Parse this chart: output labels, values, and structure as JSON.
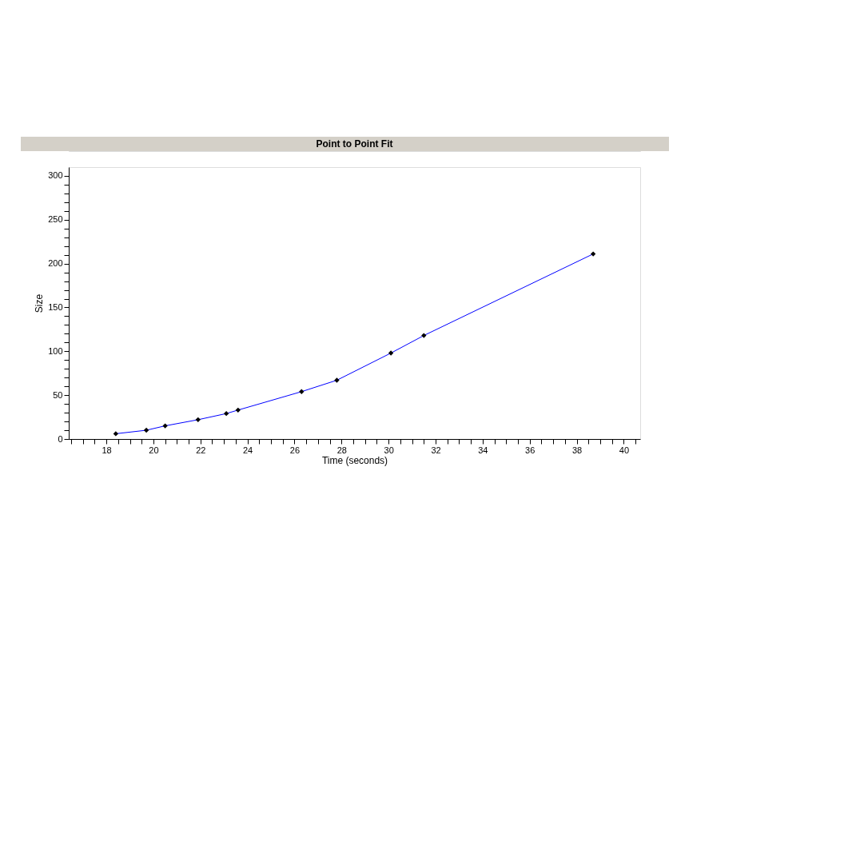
{
  "chart_data": {
    "type": "line",
    "title": "Point to Point Fit",
    "xlabel": "Time (seconds)",
    "ylabel": "Size",
    "x": [
      18.4,
      19.7,
      20.5,
      21.9,
      23.1,
      23.6,
      26.3,
      27.8,
      30.1,
      31.5,
      38.7
    ],
    "series": [
      {
        "color": "#0000ff",
        "values": [
          6,
          10,
          15,
          22,
          29,
          33,
          54,
          67,
          98,
          118,
          211
        ],
        "colors": [
          "#000000",
          "#000000",
          "#000000",
          "#000000",
          "#000000",
          "#000000",
          "#000000",
          "#000000",
          "#000000",
          "#000000",
          "#000000"
        ]
      }
    ],
    "marker": "diamond",
    "grid": false,
    "xlim": [
      16.4,
      40.7
    ],
    "ylim": [
      0,
      310
    ],
    "xticks": [
      {
        "value": 16.5,
        "label": null
      },
      {
        "value": 17,
        "label": null
      },
      {
        "value": 17.5,
        "label": null
      },
      18,
      {
        "value": 18.5,
        "label": null
      },
      {
        "value": 19,
        "label": null
      },
      {
        "value": 19.5,
        "label": null
      },
      20,
      {
        "value": 20.5,
        "label": null
      },
      {
        "value": 21,
        "label": null
      },
      {
        "value": 21.5,
        "label": null
      },
      22,
      {
        "value": 22.5,
        "label": null
      },
      {
        "value": 23,
        "label": null
      },
      {
        "value": 23.5,
        "label": null
      },
      24,
      {
        "value": 24.5,
        "label": null
      },
      {
        "value": 25,
        "label": null
      },
      {
        "value": 25.5,
        "label": null
      },
      26,
      {
        "value": 26.5,
        "label": null
      },
      {
        "value": 27,
        "label": null
      },
      {
        "value": 27.5,
        "label": null
      },
      28,
      {
        "value": 28.5,
        "label": null
      },
      {
        "value": 29,
        "label": null
      },
      {
        "value": 29.5,
        "label": null
      },
      30,
      {
        "value": 30.5,
        "label": null
      },
      {
        "value": 31,
        "label": null
      },
      {
        "value": 31.5,
        "label": null
      },
      32,
      {
        "value": 32.5,
        "label": null
      },
      {
        "value": 33,
        "label": null
      },
      {
        "value": 33.5,
        "label": null
      },
      34,
      {
        "value": 34.5,
        "label": null
      },
      {
        "value": 35,
        "label": null
      },
      {
        "value": 35.5,
        "label": null
      },
      36,
      {
        "value": 36.5,
        "label": null
      },
      {
        "value": 37,
        "label": null
      },
      {
        "value": 37.5,
        "label": null
      },
      38,
      {
        "value": 38.5,
        "label": null
      },
      {
        "value": 39,
        "label": null
      },
      {
        "value": 39.5,
        "label": null
      },
      40,
      {
        "value": 40.5,
        "label": null
      }
    ],
    "yticks": [
      0,
      {
        "value": 10,
        "label": null
      },
      {
        "value": 20,
        "label": null
      },
      {
        "value": 30,
        "label": null
      },
      {
        "value": 40,
        "label": null
      },
      50,
      {
        "value": 60,
        "label": null
      },
      {
        "value": 70,
        "label": null
      },
      {
        "value": 80,
        "label": null
      },
      {
        "value": 90,
        "label": null
      },
      100,
      {
        "value": 110,
        "label": null
      },
      {
        "value": 120,
        "label": null
      },
      {
        "value": 130,
        "label": null
      },
      {
        "value": 140,
        "label": null
      },
      150,
      {
        "value": 160,
        "label": null
      },
      {
        "value": 170,
        "label": null
      },
      {
        "value": 180,
        "label": null
      },
      {
        "value": 190,
        "label": null
      },
      200,
      {
        "value": 210,
        "label": null
      },
      {
        "value": 220,
        "label": null
      },
      {
        "value": 230,
        "label": null
      },
      {
        "value": 240,
        "label": null
      },
      250,
      {
        "value": 260,
        "label": null
      },
      {
        "value": 270,
        "label": null
      },
      {
        "value": 280,
        "label": null
      },
      {
        "value": 290,
        "label": null
      },
      300
    ]
  }
}
